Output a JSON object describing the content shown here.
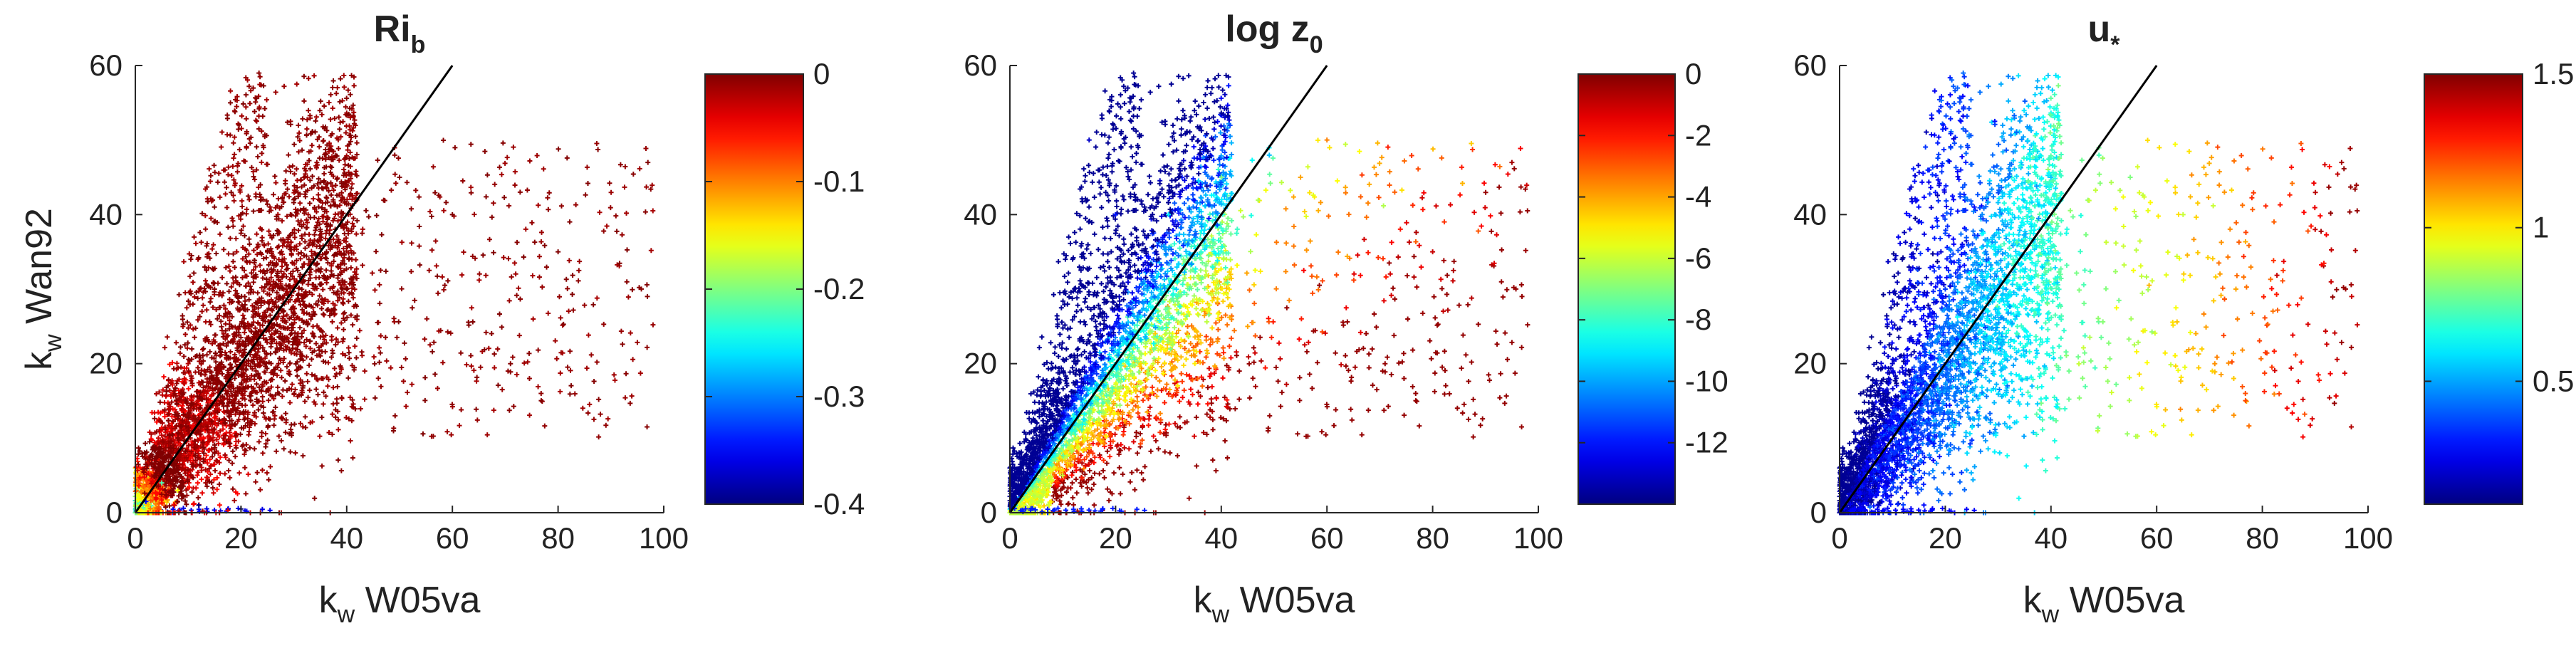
{
  "chart_data": [
    {
      "type": "scatter",
      "title": "Ri",
      "title_sub": "b",
      "xlabel_main": "k",
      "xlabel_sub": "w",
      "xlabel_rest": " W05va",
      "ylabel_main": "k",
      "ylabel_sub": "w",
      "ylabel_rest": " Wan92",
      "xlim": [
        0,
        100
      ],
      "ylim": [
        0,
        60
      ],
      "xticks": [
        "0",
        "20",
        "40",
        "60",
        "80",
        "100"
      ],
      "yticks": [
        "0",
        "20",
        "40",
        "60"
      ],
      "reference_line": {
        "x": [
          0,
          60
        ],
        "y": [
          0,
          60
        ],
        "color": "#000000"
      },
      "color_variable": "Ri_b",
      "colorbar": {
        "min": -0.4,
        "max": 0,
        "ticks": [
          "0",
          "-0.1",
          "-0.2",
          "-0.3",
          "-0.4"
        ],
        "tick_values": [
          0,
          -0.1,
          -0.2,
          -0.3,
          -0.4
        ]
      },
      "approx_points": [
        {
          "x": 2,
          "y": 1.5,
          "c": -0.35
        },
        {
          "x": 5,
          "y": 4,
          "c": -0.22
        },
        {
          "x": 8,
          "y": 3,
          "c": -0.15
        },
        {
          "x": 12,
          "y": 1,
          "c": -0.4
        },
        {
          "x": 20,
          "y": 0.5,
          "c": -0.4
        },
        {
          "x": 15,
          "y": 30,
          "c": 0
        },
        {
          "x": 20,
          "y": 40,
          "c": 0
        },
        {
          "x": 25,
          "y": 35,
          "c": 0
        },
        {
          "x": 30,
          "y": 42,
          "c": 0
        },
        {
          "x": 35,
          "y": 38,
          "c": 0
        },
        {
          "x": 40,
          "y": 30,
          "c": 0
        },
        {
          "x": 50,
          "y": 45,
          "c": 0
        },
        {
          "x": 60,
          "y": 40,
          "c": 0
        },
        {
          "x": 80,
          "y": 35,
          "c": 0
        },
        {
          "x": 97,
          "y": 47,
          "c": 0
        },
        {
          "x": 18,
          "y": 55,
          "c": 0
        },
        {
          "x": 10,
          "y": 20,
          "c": -0.02
        }
      ]
    },
    {
      "type": "scatter",
      "title": "log z",
      "title_sub": "0",
      "xlabel_main": "k",
      "xlabel_sub": "w",
      "xlabel_rest": " W05va",
      "ylabel_main": "",
      "ylabel_sub": "",
      "ylabel_rest": "",
      "xlim": [
        0,
        100
      ],
      "ylim": [
        0,
        60
      ],
      "xticks": [
        "0",
        "20",
        "40",
        "60",
        "80",
        "100"
      ],
      "yticks": [
        "0",
        "20",
        "40",
        "60"
      ],
      "reference_line": {
        "x": [
          0,
          60
        ],
        "y": [
          0,
          60
        ],
        "color": "#000000"
      },
      "color_variable": "log z0",
      "colorbar": {
        "min": -14,
        "max": 0,
        "ticks": [
          "0",
          "-2",
          "-4",
          "-6",
          "-8",
          "-10",
          "-12"
        ],
        "tick_values": [
          0,
          -2,
          -4,
          -6,
          -8,
          -10,
          -12
        ]
      },
      "approx_points": [
        {
          "x": 15,
          "y": 50,
          "c": -13
        },
        {
          "x": 20,
          "y": 40,
          "c": -12
        },
        {
          "x": 30,
          "y": 40,
          "c": -9
        },
        {
          "x": 40,
          "y": 45,
          "c": -7
        },
        {
          "x": 35,
          "y": 20,
          "c": -5
        },
        {
          "x": 45,
          "y": 25,
          "c": -4
        },
        {
          "x": 55,
          "y": 45,
          "c": -4
        },
        {
          "x": 60,
          "y": 50,
          "c": -3.5
        },
        {
          "x": 80,
          "y": 35,
          "c": -1
        },
        {
          "x": 95,
          "y": 47,
          "c": -0.5
        },
        {
          "x": 10,
          "y": 5,
          "c": -6
        }
      ]
    },
    {
      "type": "scatter",
      "title": "u",
      "title_sub": "*",
      "xlabel_main": "k",
      "xlabel_sub": "w",
      "xlabel_rest": " W05va",
      "ylabel_main": "",
      "ylabel_sub": "",
      "ylabel_rest": "",
      "xlim": [
        0,
        100
      ],
      "ylim": [
        0,
        60
      ],
      "xticks": [
        "0",
        "20",
        "40",
        "60",
        "80",
        "100"
      ],
      "yticks": [
        "0",
        "20",
        "40",
        "60"
      ],
      "reference_line": {
        "x": [
          0,
          60
        ],
        "y": [
          0,
          60
        ],
        "color": "#000000"
      },
      "color_variable": "u*",
      "colorbar": {
        "min": 0.1,
        "max": 1.5,
        "ticks": [
          "1.5",
          "1",
          "0.5"
        ],
        "tick_values": [
          1.5,
          1.0,
          0.5
        ]
      },
      "approx_points": [
        {
          "x": 10,
          "y": 20,
          "c": 0.2
        },
        {
          "x": 20,
          "y": 30,
          "c": 0.35
        },
        {
          "x": 30,
          "y": 35,
          "c": 0.5
        },
        {
          "x": 40,
          "y": 45,
          "c": 0.55
        },
        {
          "x": 55,
          "y": 45,
          "c": 0.8
        },
        {
          "x": 65,
          "y": 40,
          "c": 0.9
        },
        {
          "x": 75,
          "y": 30,
          "c": 1.1
        },
        {
          "x": 90,
          "y": 38,
          "c": 1.4
        },
        {
          "x": 95,
          "y": 47,
          "c": 1.45
        }
      ]
    }
  ]
}
